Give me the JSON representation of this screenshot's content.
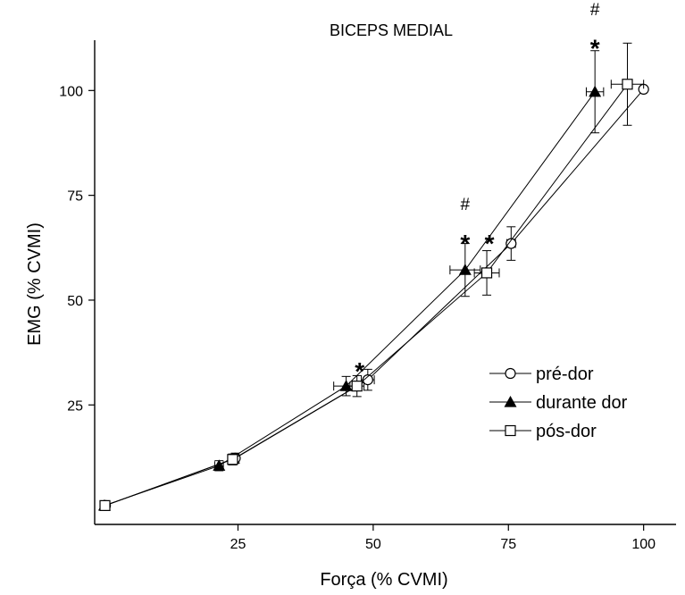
{
  "chart_data": {
    "type": "line",
    "title": "BICEPS MEDIAL",
    "xlabel": "Força (% CVMI)",
    "ylabel": "EMG (% CVMI)",
    "xlim": [
      -1.5,
      106
    ],
    "ylim": [
      -3.5,
      112
    ],
    "xticks": [
      "25",
      "50",
      "75",
      "100"
    ],
    "xtick_values": [
      25,
      50,
      75,
      100
    ],
    "yticks": [
      "25",
      "50",
      "75",
      "100"
    ],
    "ytick_values": [
      25,
      50,
      75,
      100
    ],
    "legend_position": "right",
    "series": [
      {
        "name": "pré-dor",
        "marker": "open-circle",
        "points": [
          {
            "x": 0.5,
            "y": 1,
            "xerr": 0.6,
            "yerr": 0.6
          },
          {
            "x": 24.5,
            "y": 12.3,
            "xerr": 0.7,
            "yerr": 1.2
          },
          {
            "x": 49,
            "y": 31,
            "xerr": 1.2,
            "yerr": 2.5
          },
          {
            "x": 75.5,
            "y": 63.5,
            "xerr": 0.8,
            "yerr": 4
          },
          {
            "x": 100,
            "y": 100.3,
            "xerr": 0.5,
            "yerr": 0.5
          }
        ]
      },
      {
        "name": "durante dor",
        "marker": "filled-triangle",
        "points": [
          {
            "x": 0.3,
            "y": 1,
            "xerr": 0.6,
            "yerr": 0.6
          },
          {
            "x": 21.5,
            "y": 10.5,
            "xerr": 0.8,
            "yerr": 1.2
          },
          {
            "x": 45,
            "y": 29.5,
            "xerr": 2.3,
            "yerr": 2.3
          },
          {
            "x": 67,
            "y": 57.2,
            "xerr": 2.8,
            "yerr": 6.3
          },
          {
            "x": 91,
            "y": 99.7,
            "xerr": 1.6,
            "yerr": 9.8
          }
        ]
      },
      {
        "name": "pós-dor",
        "marker": "open-square",
        "points": [
          {
            "x": 0.4,
            "y": 1,
            "xerr": 0.6,
            "yerr": 0.6
          },
          {
            "x": 24,
            "y": 12,
            "xerr": 0.8,
            "yerr": 1.3
          },
          {
            "x": 47,
            "y": 29.5,
            "xerr": 1.3,
            "yerr": 2.5
          },
          {
            "x": 71,
            "y": 56.5,
            "xerr": 2.3,
            "yerr": 5.3
          },
          {
            "x": 97,
            "y": 101.5,
            "xerr": 3,
            "yerr": 9.8
          }
        ]
      }
    ],
    "annotations": [
      {
        "text": "*",
        "x": 47.5,
        "y": 34
      },
      {
        "text": "*",
        "x": 67,
        "y": 64.5
      },
      {
        "text": "#",
        "x": 67,
        "y": 71.5
      },
      {
        "text": "*",
        "x": 71.5,
        "y": 64.5
      },
      {
        "text": "*",
        "x": 91,
        "y": 111
      },
      {
        "text": "#",
        "x": 91,
        "y": 118
      }
    ]
  }
}
